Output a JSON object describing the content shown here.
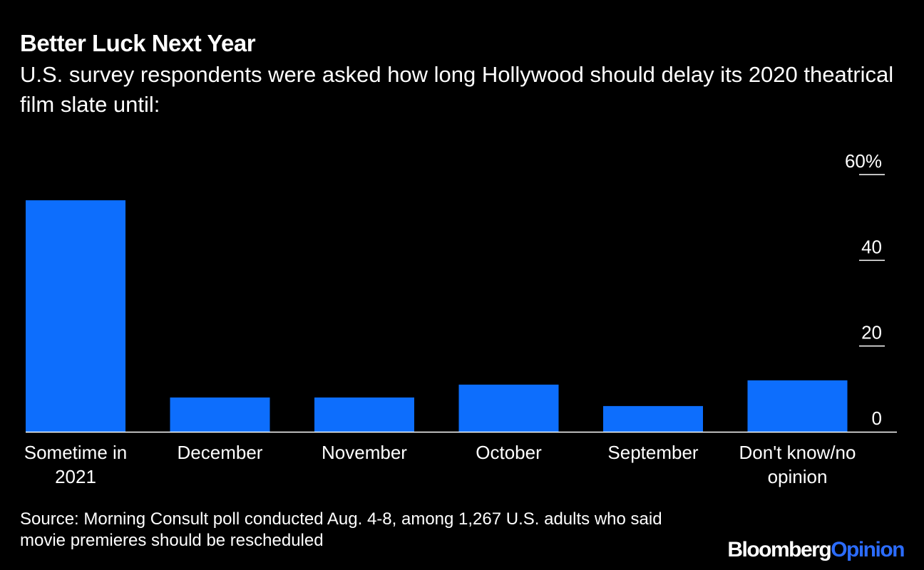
{
  "title": "Better Luck Next Year",
  "subtitle": "U.S. survey respondents were asked how long Hollywood should delay its 2020 theatrical film slate until:",
  "source": "Source: Morning Consult poll conducted Aug. 4-8, among 1,267 U.S. adults who said movie premieres should be rescheduled",
  "logo": {
    "brand": "Bloomberg",
    "suffix": "Opinion"
  },
  "colors": {
    "background": "#000000",
    "bar": "#0d6efd",
    "text": "#ffffff",
    "logo_accent": "#2b6cff"
  },
  "chart_data": {
    "type": "bar",
    "categories": [
      [
        "Sometime in",
        "2021"
      ],
      [
        "December"
      ],
      [
        "November"
      ],
      [
        "October"
      ],
      [
        "September"
      ],
      [
        "Don't know/no",
        "opinion"
      ]
    ],
    "values": [
      54,
      8,
      8,
      11,
      6,
      12
    ],
    "y_ticks": [
      {
        "value": 60,
        "label": "60%"
      },
      {
        "value": 40,
        "label": "40"
      },
      {
        "value": 20,
        "label": "20"
      },
      {
        "value": 0,
        "label": "0"
      }
    ],
    "ylim": [
      0,
      60
    ],
    "y_axis_position": "right",
    "grid": false,
    "title": "Better Luck Next Year",
    "xlabel": "",
    "ylabel": ""
  }
}
